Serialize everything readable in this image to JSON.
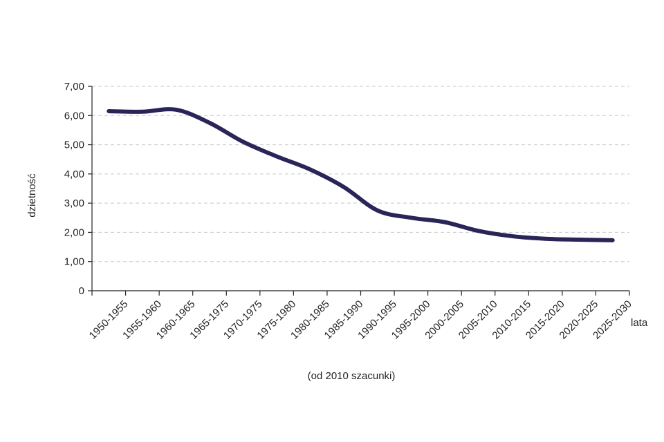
{
  "chart_data": {
    "type": "line",
    "xlabel": "lata",
    "ylabel": "dzietność",
    "note": "(od 2010 szacunki)",
    "ylim": [
      0,
      7
    ],
    "grid": true,
    "y_ticks": [
      "0",
      "1,00",
      "2,00",
      "3,00",
      "4,00",
      "5,00",
      "6,00",
      "7,00"
    ],
    "categories": [
      "1950-1955",
      "1955-1960",
      "1960-1965",
      "1965-1975",
      "1970-1975",
      "1975-1980",
      "1980-1985",
      "1985-1990",
      "1990-1995",
      "1995-2000",
      "2000-2005",
      "2005-2010",
      "2010-2015",
      "2015-2020",
      "2020-2025",
      "2025-2030"
    ],
    "series": [
      {
        "color": "#2a2559",
        "values": [
          6.15,
          6.13,
          6.2,
          5.75,
          5.1,
          4.6,
          4.15,
          3.55,
          2.75,
          2.5,
          2.35,
          2.05,
          1.87,
          1.78,
          1.75,
          1.73
        ]
      }
    ]
  }
}
